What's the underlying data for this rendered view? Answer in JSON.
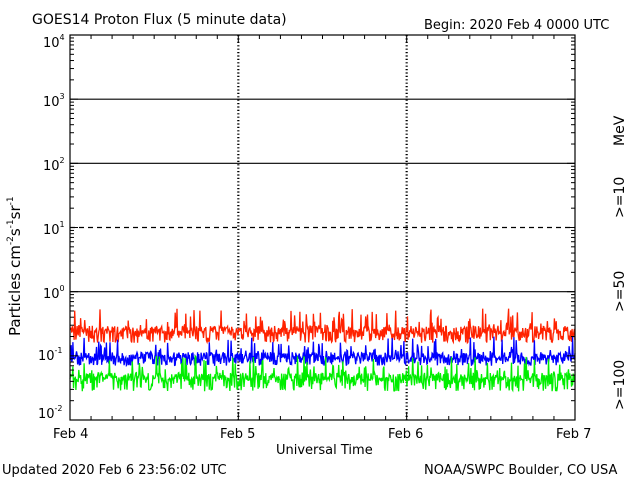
{
  "header": {
    "title": "GOES14 Proton Flux (5 minute data)",
    "begin": "Begin: 2020 Feb 4 0000 UTC"
  },
  "footer": {
    "updated": "Updated 2020 Feb  6 23:56:02 UTC",
    "credit": "NOAA/SWPC Boulder, CO USA"
  },
  "colors": {
    "ge10": "#ff2200",
    "ge50": "#0000ff",
    "ge100": "#00ee00",
    "frame": "#000000"
  },
  "chart_data": {
    "type": "line",
    "yscale": "log",
    "ylim": [
      0.01,
      10000
    ],
    "xlim_days": [
      0,
      3
    ],
    "xlabel": "Universal Time",
    "ylabel_base": "Particles cm",
    "ylabel_sup1": "-2",
    "ylabel_mid1": "s",
    "ylabel_sup2": "-1",
    "ylabel_mid2": "sr",
    "ylabel_sup3": "-1",
    "unit_label": "MeV",
    "x_ticks": [
      {
        "label": "Feb 4",
        "day": 0
      },
      {
        "label": "Feb 5",
        "day": 1
      },
      {
        "label": "Feb 6",
        "day": 2
      },
      {
        "label": "Feb 7",
        "day": 3
      }
    ],
    "y_ticks": [
      {
        "base": "10",
        "exp": "-2",
        "value": 0.01
      },
      {
        "base": "10",
        "exp": "-1",
        "value": 0.1
      },
      {
        "base": "10",
        "exp": "0",
        "value": 1
      },
      {
        "base": "10",
        "exp": "1",
        "value": 10
      },
      {
        "base": "10",
        "exp": "2",
        "value": 100
      },
      {
        "base": "10",
        "exp": "3",
        "value": 1000
      },
      {
        "base": "10",
        "exp": "4",
        "value": 10000
      }
    ],
    "h_lines": [
      {
        "value": 1000,
        "style": "solid"
      },
      {
        "value": 100,
        "style": "solid"
      },
      {
        "value": 10,
        "style": "dashed"
      },
      {
        "value": 1,
        "style": "solid"
      }
    ],
    "series": [
      {
        "name": ">=10",
        "color": "#ff2200",
        "min": 0.16,
        "max": 0.55,
        "typical": 0.24
      },
      {
        "name": ">=50",
        "color": "#0000ff",
        "min": 0.07,
        "max": 0.2,
        "typical": 0.095
      },
      {
        "name": ">=100",
        "color": "#00ee00",
        "min": 0.028,
        "max": 0.1,
        "typical": 0.045
      }
    ]
  }
}
